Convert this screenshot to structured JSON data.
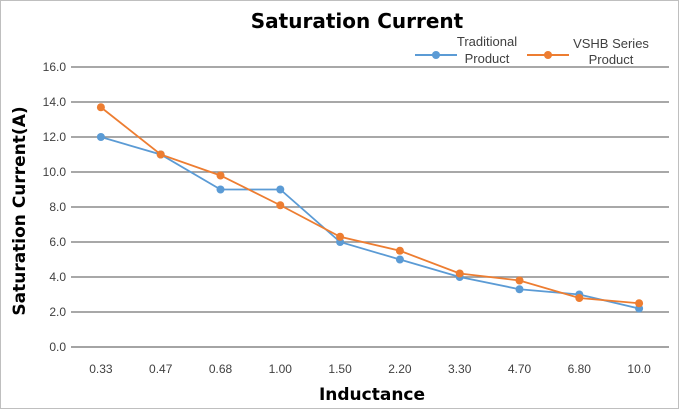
{
  "chart_data": {
    "type": "line",
    "title": "Saturation Current",
    "xlabel": "Inductance",
    "ylabel": "Saturation Current(A)",
    "categories": [
      "0.33",
      "0.47",
      "0.68",
      "1.00",
      "1.50",
      "2.20",
      "3.30",
      "4.70",
      "6.80",
      "10.0"
    ],
    "ylim": [
      0,
      16
    ],
    "yticks": [
      "0.0",
      "2.0",
      "4.0",
      "6.0",
      "8.0",
      "10.0",
      "12.0",
      "14.0",
      "16.0"
    ],
    "grid": true,
    "legend": "top-right",
    "series": [
      {
        "name_lines": [
          "Traditional",
          "Product"
        ],
        "color": "#5b9bd5",
        "values": [
          12.0,
          11.0,
          9.0,
          9.0,
          6.0,
          5.0,
          4.0,
          3.3,
          3.0,
          2.2
        ]
      },
      {
        "name_lines": [
          "VSHB Series",
          "Product"
        ],
        "color": "#ed7d31",
        "values": [
          13.7,
          11.0,
          9.8,
          8.1,
          6.3,
          5.5,
          4.2,
          3.8,
          2.8,
          2.5
        ]
      }
    ]
  }
}
